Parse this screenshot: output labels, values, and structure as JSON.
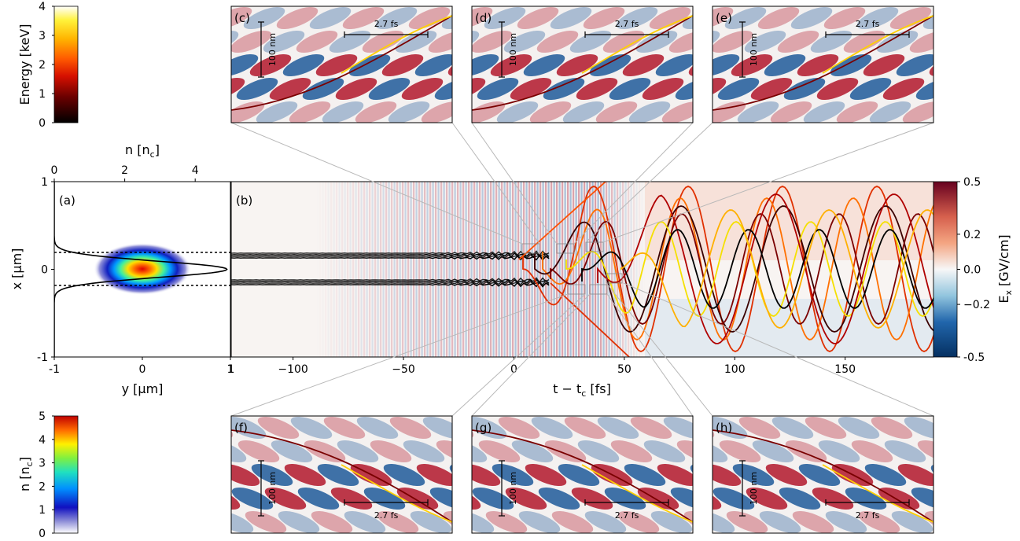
{
  "chart_data": [
    {
      "panel": "a",
      "type": "heatmap",
      "label": "(a)",
      "xlabel": "y [μm]",
      "ylabel": "x [μm]",
      "top_axis_label": "n [n",
      "top_axis_label_sub": "c",
      "top_axis_label_close": "]",
      "xlim": [
        -1,
        1
      ],
      "ylim": [
        -1,
        1
      ],
      "top_xlim": [
        0,
        5
      ],
      "xticks": [
        "-1",
        "0",
        "1"
      ],
      "yticks": [
        "-1",
        "0",
        "1"
      ],
      "top_ticks": [
        "0",
        "2",
        "4"
      ],
      "density_profile": {
        "peak_n": 4.9,
        "description_points": [
          [
            -1,
            0
          ],
          [
            -0.3,
            0.2
          ],
          [
            -0.2,
            1.4
          ],
          [
            0,
            4.9
          ],
          [
            0.2,
            1.4
          ],
          [
            0.3,
            0.2
          ],
          [
            1,
            0
          ]
        ]
      },
      "dashed_lines_x": [
        -0.19,
        0.19
      ]
    },
    {
      "panel": "b",
      "type": "heatmap",
      "label": "(b)",
      "xlabel": "t − t",
      "xlabel_sub": "c",
      "xlabel_close": " [fs]",
      "xlim": [
        -128,
        190
      ],
      "ylim": [
        -1,
        1
      ],
      "xticks": [
        "−100",
        "−50",
        "0",
        "50",
        "100",
        "150"
      ],
      "xtick_values": [
        -100,
        -50,
        0,
        50,
        100,
        150
      ],
      "colorbar": {
        "label": "E",
        "label_sub": "x",
        "label_close": " [GV/cm]",
        "range": [
          -0.5,
          0.5
        ],
        "ticks": [
          "0.5",
          "0.2",
          "0.0",
          "−0.2",
          "-0.5"
        ],
        "tick_values": [
          0.5,
          0.2,
          0.0,
          -0.2,
          -0.5
        ]
      },
      "trajectory_bands": [
        [
          0.1,
          0.18
        ],
        [
          -0.18,
          -0.1
        ]
      ],
      "laser_extent_t": [
        -110,
        65
      ]
    },
    {
      "panel": "energy-colorbar",
      "type": "heatmap",
      "label": "Energy [keV]",
      "range": [
        0,
        4
      ],
      "ticks": [
        "0",
        "1",
        "2",
        "3",
        "4"
      ],
      "tick_values": [
        0,
        1,
        2,
        3,
        4
      ]
    },
    {
      "panel": "density-colorbar",
      "type": "heatmap",
      "label": "n [n",
      "label_sub": "c",
      "label_close": "]",
      "range": [
        0,
        5
      ],
      "ticks": [
        "0",
        "1",
        "2",
        "3",
        "4",
        "5"
      ],
      "tick_values": [
        0,
        1,
        2,
        3,
        4,
        5
      ]
    },
    {
      "panel": "insets",
      "type": "heatmap",
      "labels": [
        "(c)",
        "(d)",
        "(e)",
        "(f)",
        "(g)",
        "(h)"
      ],
      "scale_bar_length": "100 nm",
      "time_bar_length": "2.7 fs"
    }
  ]
}
